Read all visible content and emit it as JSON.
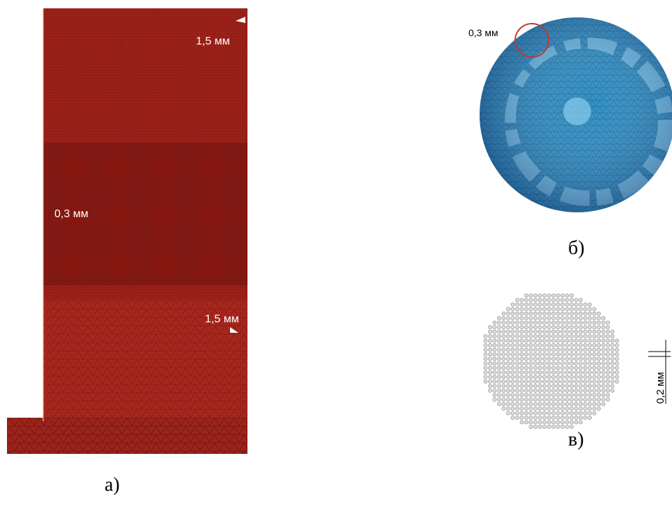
{
  "panels": [
    {
      "caption": "а)",
      "annotations": [
        "1,5 мм",
        "0,3 мм",
        "1,5 мм"
      ]
    },
    {
      "caption": "б)",
      "annotations": [
        "0,3 мм"
      ]
    },
    {
      "caption": "в)",
      "annotations": [
        "0,2 мм"
      ]
    }
  ]
}
